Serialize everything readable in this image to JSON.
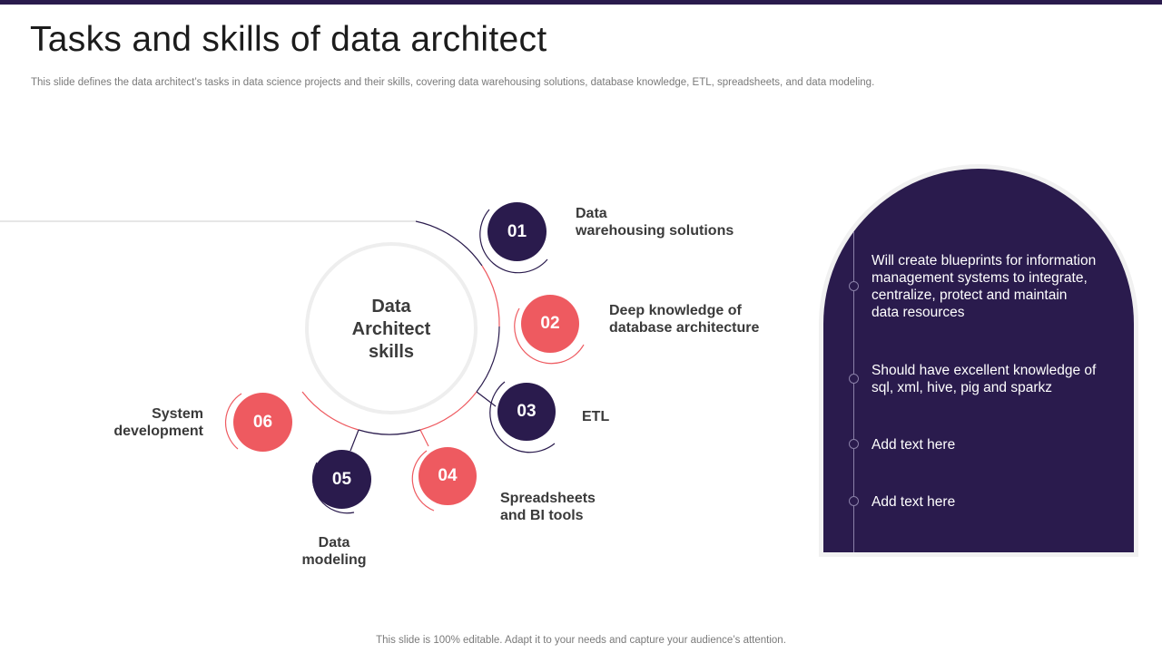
{
  "slide": {
    "title": "Tasks and skills of data architect",
    "subtitle": "This slide defines the data architect’s tasks in data science projects and their skills, covering data warehousing solutions, database knowledge, ETL, spreadsheets, and data modeling.",
    "footer": "This slide is 100% editable. Adapt it to your needs and capture your audience’s attention."
  },
  "center": {
    "lines": [
      "Data",
      "Architect",
      "skills"
    ]
  },
  "skills": [
    {
      "number": "01",
      "lines": [
        "Data",
        "warehousing solutions"
      ],
      "color": "navy"
    },
    {
      "number": "02",
      "lines": [
        "Deep knowledge of",
        "database architecture"
      ],
      "color": "coral"
    },
    {
      "number": "03",
      "lines": [
        "ETL"
      ],
      "color": "navy"
    },
    {
      "number": "04",
      "lines": [
        "Spreadsheets",
        "and BI tools"
      ],
      "color": "coral"
    },
    {
      "number": "05",
      "lines": [
        "Data",
        "modeling"
      ],
      "color": "navy"
    },
    {
      "number": "06",
      "lines": [
        "System",
        "development"
      ],
      "color": "coral"
    }
  ],
  "tasks": [
    {
      "lines": [
        "Will create blueprints for information",
        "management systems to integrate,",
        "centralize, protect and maintain",
        "data resources"
      ]
    },
    {
      "lines": [
        "Should have excellent knowledge of",
        "sql, xml, hive, pig and sparkz"
      ]
    },
    {
      "lines": [
        "Add text here"
      ]
    },
    {
      "lines": [
        "Add text here"
      ]
    }
  ],
  "colors": {
    "navy": "#2a1b4d",
    "coral": "#ee5a60",
    "panel_bg": "#2a1b4d",
    "top_rule": "#2a1b4d"
  }
}
